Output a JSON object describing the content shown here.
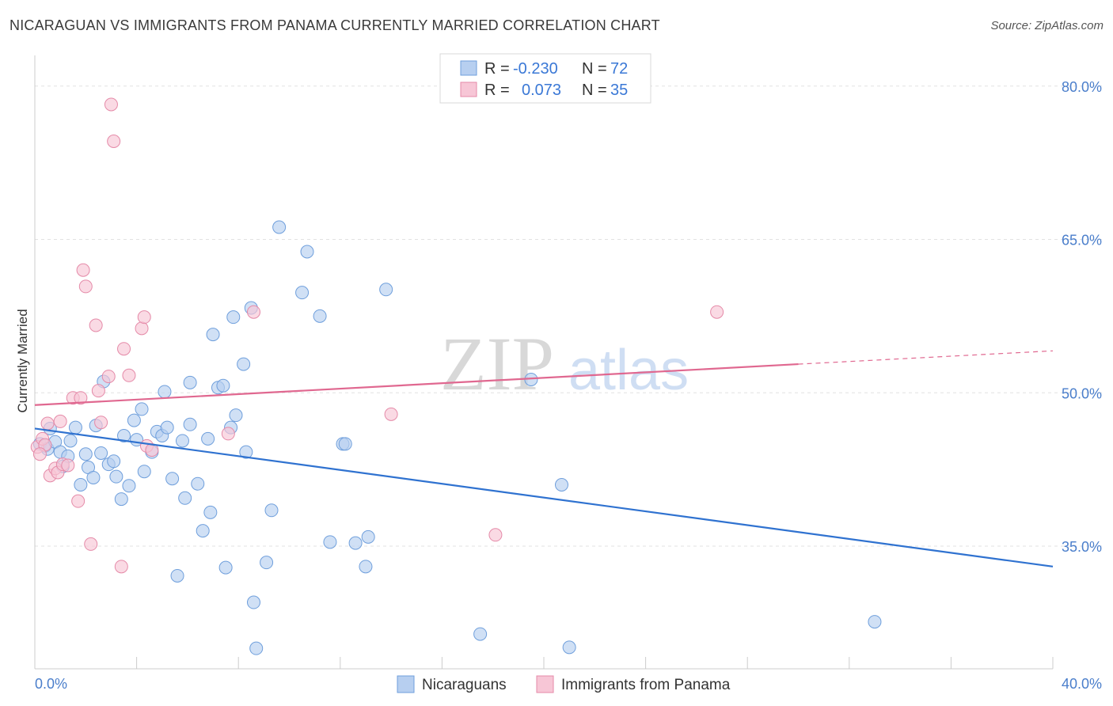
{
  "title": "NICARAGUAN VS IMMIGRANTS FROM PANAMA CURRENTLY MARRIED CORRELATION CHART",
  "source": "Source: ZipAtlas.com",
  "watermark": {
    "zip": "ZIP",
    "atlas": "atlas"
  },
  "colors": {
    "blue_fill": "#b7cff0",
    "blue_stroke": "#6f9fdc",
    "blue_line": "#2f72d0",
    "pink_fill": "#f7c6d6",
    "pink_stroke": "#e58aa8",
    "pink_line": "#e06890",
    "grid": "#e2e2e2",
    "axis": "#cccccc",
    "tick_text": "#4a7ecb"
  },
  "legend_box": {
    "rows": [
      {
        "r_label": "R =",
        "r_value": "-0.230",
        "n_label": "N =",
        "n_value": "72",
        "series": "blue"
      },
      {
        "r_label": "R =",
        "r_value": "0.073",
        "n_label": "N =",
        "n_value": "35",
        "series": "pink"
      }
    ]
  },
  "chart_data": {
    "type": "scatter",
    "title": "NICARAGUAN VS IMMIGRANTS FROM PANAMA CURRENTLY MARRIED CORRELATION CHART",
    "xlabel": "",
    "ylabel": "Currently Married",
    "xlim": [
      0,
      40
    ],
    "ylim": [
      23,
      83
    ],
    "x_tick_labels": [
      "0.0%",
      "40.0%"
    ],
    "y_ticks": [
      35,
      50,
      65,
      80
    ],
    "y_tick_labels": [
      "35.0%",
      "50.0%",
      "65.0%",
      "80.0%"
    ],
    "grid": true,
    "legend_position": "bottom",
    "series": [
      {
        "name": "Nicaraguans",
        "color": "#6f9fdc",
        "trend": {
          "x": [
            0,
            40
          ],
          "y": [
            46.5,
            33.0
          ]
        },
        "points": [
          [
            0.2,
            45.0
          ],
          [
            0.4,
            44.8
          ],
          [
            0.5,
            44.5
          ],
          [
            0.6,
            46.5
          ],
          [
            0.8,
            45.2
          ],
          [
            1.0,
            44.2
          ],
          [
            1.1,
            42.8
          ],
          [
            1.3,
            43.8
          ],
          [
            1.4,
            45.3
          ],
          [
            1.6,
            46.6
          ],
          [
            1.8,
            41.0
          ],
          [
            2.0,
            44.0
          ],
          [
            2.1,
            42.7
          ],
          [
            2.3,
            41.7
          ],
          [
            2.4,
            46.8
          ],
          [
            2.6,
            44.1
          ],
          [
            2.7,
            51.1
          ],
          [
            2.9,
            43.0
          ],
          [
            3.1,
            43.3
          ],
          [
            3.2,
            41.8
          ],
          [
            3.4,
            39.6
          ],
          [
            3.5,
            45.8
          ],
          [
            3.7,
            40.9
          ],
          [
            3.9,
            47.3
          ],
          [
            4.0,
            45.4
          ],
          [
            4.2,
            48.4
          ],
          [
            4.3,
            42.3
          ],
          [
            4.6,
            44.2
          ],
          [
            4.8,
            46.2
          ],
          [
            5.0,
            45.8
          ],
          [
            5.1,
            50.1
          ],
          [
            5.2,
            46.6
          ],
          [
            5.4,
            41.6
          ],
          [
            5.6,
            32.1
          ],
          [
            5.8,
            45.3
          ],
          [
            5.9,
            39.7
          ],
          [
            6.1,
            46.9
          ],
          [
            6.1,
            51.0
          ],
          [
            6.4,
            41.1
          ],
          [
            6.6,
            36.5
          ],
          [
            6.8,
            45.5
          ],
          [
            6.9,
            38.3
          ],
          [
            7.0,
            55.7
          ],
          [
            7.2,
            50.5
          ],
          [
            7.4,
            50.7
          ],
          [
            7.5,
            32.9
          ],
          [
            7.7,
            46.6
          ],
          [
            7.8,
            57.4
          ],
          [
            7.9,
            47.8
          ],
          [
            8.2,
            52.8
          ],
          [
            8.3,
            44.2
          ],
          [
            8.6,
            29.5
          ],
          [
            8.7,
            25.0
          ],
          [
            8.5,
            58.3
          ],
          [
            9.1,
            33.4
          ],
          [
            9.3,
            38.5
          ],
          [
            9.6,
            66.2
          ],
          [
            10.5,
            59.8
          ],
          [
            10.7,
            63.8
          ],
          [
            11.2,
            57.5
          ],
          [
            11.6,
            35.4
          ],
          [
            12.1,
            45.0
          ],
          [
            12.2,
            45.0
          ],
          [
            12.6,
            35.3
          ],
          [
            13.0,
            33.0
          ],
          [
            13.1,
            35.9
          ],
          [
            13.8,
            60.1
          ],
          [
            17.5,
            26.4
          ],
          [
            19.5,
            51.3
          ],
          [
            20.7,
            41.0
          ],
          [
            21.0,
            25.1
          ],
          [
            33.0,
            27.6
          ]
        ]
      },
      {
        "name": "Immigrants from Panama",
        "color": "#e58aa8",
        "trend": {
          "x": [
            0,
            30
          ],
          "y": [
            48.8,
            52.8
          ]
        },
        "trend_dashed": {
          "x": [
            30,
            40
          ],
          "y": [
            52.8,
            54.1
          ]
        },
        "points": [
          [
            0.1,
            44.7
          ],
          [
            0.3,
            45.5
          ],
          [
            0.4,
            44.9
          ],
          [
            0.5,
            47.0
          ],
          [
            0.6,
            41.9
          ],
          [
            0.8,
            42.6
          ],
          [
            0.9,
            42.2
          ],
          [
            1.0,
            47.2
          ],
          [
            1.1,
            43.0
          ],
          [
            1.3,
            42.9
          ],
          [
            1.5,
            49.5
          ],
          [
            1.7,
            39.4
          ],
          [
            1.8,
            49.5
          ],
          [
            1.9,
            62.0
          ],
          [
            2.0,
            60.4
          ],
          [
            2.2,
            35.2
          ],
          [
            2.4,
            56.6
          ],
          [
            2.5,
            50.2
          ],
          [
            2.6,
            47.1
          ],
          [
            2.9,
            51.6
          ],
          [
            3.0,
            78.2
          ],
          [
            3.1,
            74.6
          ],
          [
            3.4,
            33.0
          ],
          [
            3.5,
            54.3
          ],
          [
            3.7,
            51.7
          ],
          [
            4.2,
            56.3
          ],
          [
            4.3,
            57.4
          ],
          [
            4.4,
            44.8
          ],
          [
            4.6,
            44.4
          ],
          [
            7.6,
            46.0
          ],
          [
            8.6,
            57.9
          ],
          [
            14.0,
            47.9
          ],
          [
            18.1,
            36.1
          ],
          [
            26.8,
            57.9
          ],
          [
            0.2,
            44.0
          ]
        ]
      }
    ]
  }
}
